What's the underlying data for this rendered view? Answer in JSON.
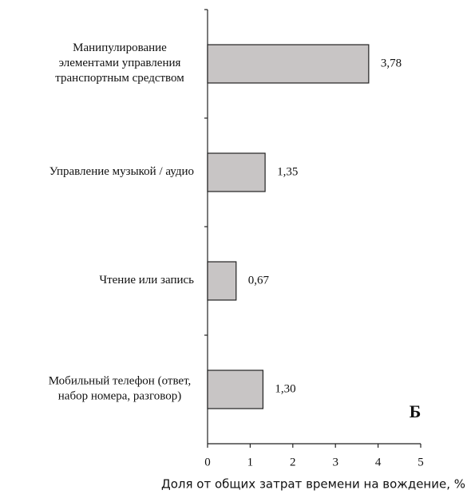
{
  "chart_data": {
    "type": "barh",
    "categories": [
      "Манипулирование\nэлементами управления\nтранспортным средством",
      "Управление музыкой / аудио",
      "Чтение или запись",
      "Мобильный телефон (ответ,\nнабор номера, разговор)"
    ],
    "values": [
      3.78,
      1.35,
      0.67,
      1.3
    ],
    "value_labels": [
      "3,78",
      "1,35",
      "0,67",
      "1,30"
    ],
    "color": "#c8c5c5",
    "xlim": [
      0,
      5
    ],
    "xticks": [
      0,
      1,
      2,
      3,
      4,
      5
    ],
    "xlabel": "Доля от общих затрат времени на вождение, %",
    "annotation": "Б"
  }
}
